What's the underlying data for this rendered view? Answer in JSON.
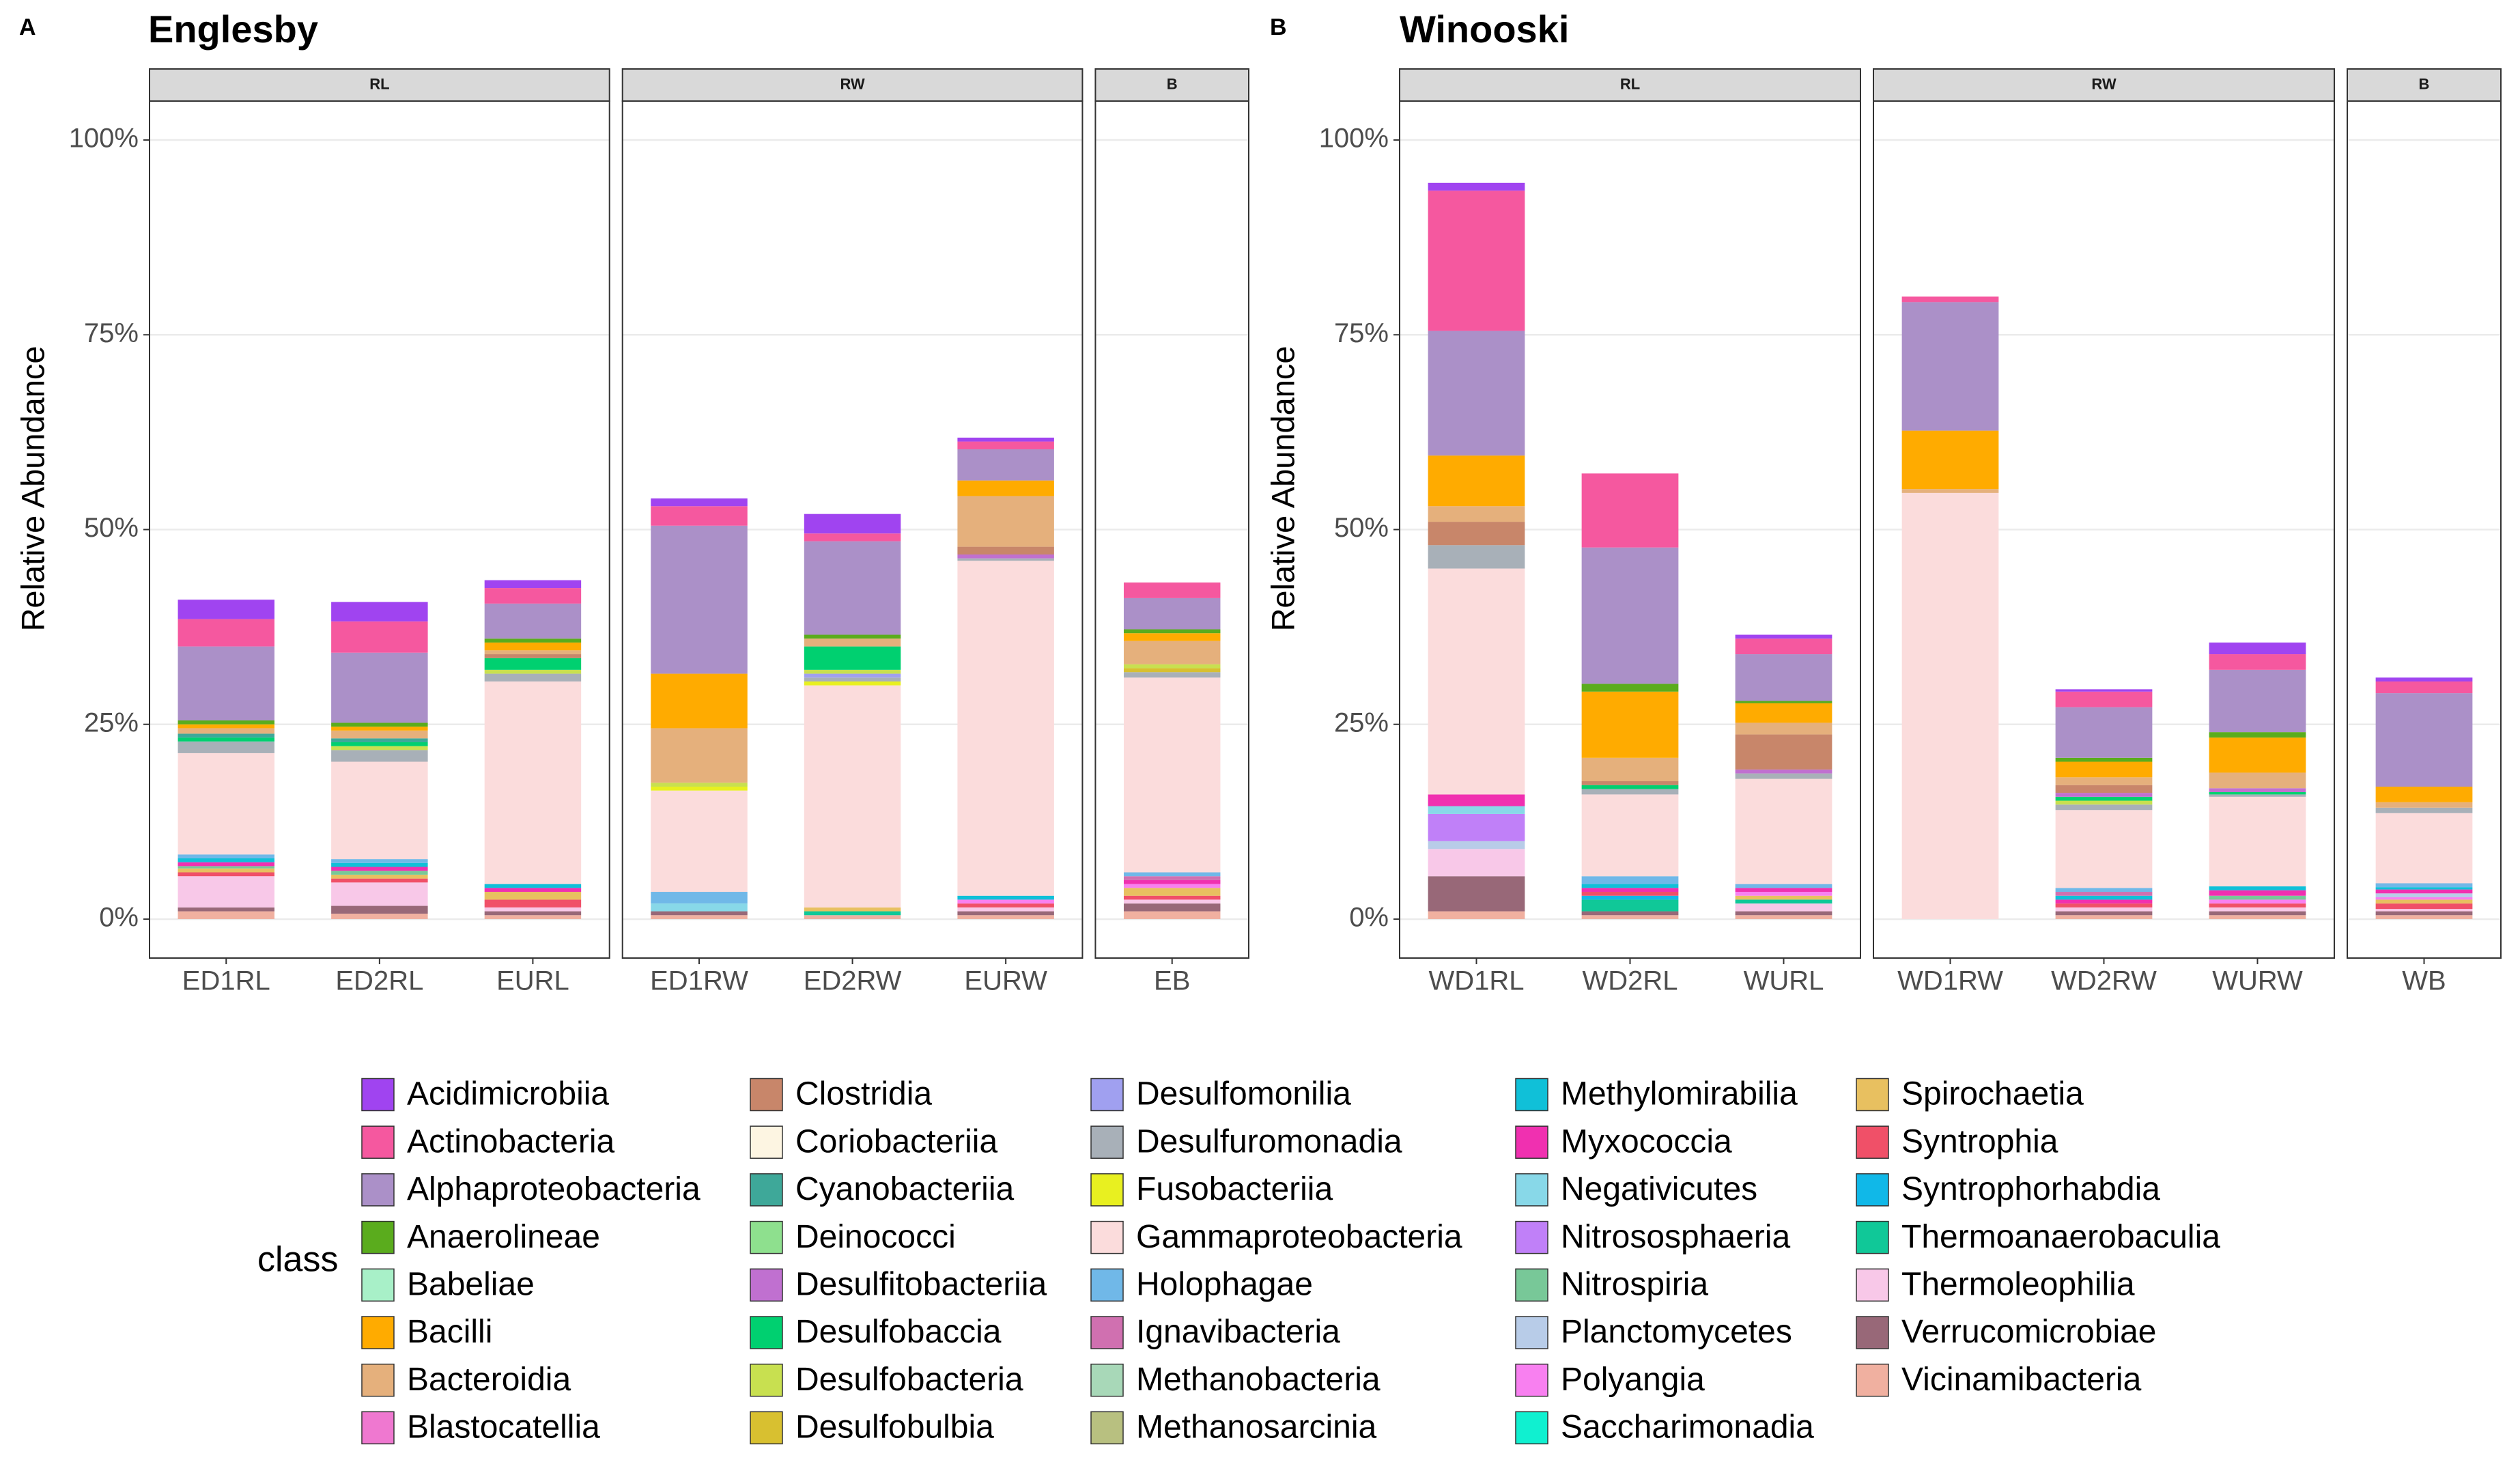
{
  "chart_data": {
    "type": "bar",
    "stacked": true,
    "ylabel": "Relative Abundance",
    "ylim": [
      -5,
      105
    ],
    "yticks": [
      {
        "value": 0,
        "label": "0%"
      },
      {
        "value": 25,
        "label": "25%"
      },
      {
        "value": 50,
        "label": "50%"
      },
      {
        "value": 75,
        "label": "75%"
      },
      {
        "value": 100,
        "label": "100%"
      }
    ],
    "grid": true,
    "legend_title": "class",
    "panels": [
      {
        "label": "A",
        "title": "Englesby",
        "facets": [
          {
            "name": "RL",
            "categories": [
              "ED1RL",
              "ED2RL",
              "EURL"
            ]
          },
          {
            "name": "RW",
            "categories": [
              "ED1RW",
              "ED2RW",
              "EURW"
            ]
          },
          {
            "name": "B",
            "categories": [
              "EB"
            ]
          }
        ]
      },
      {
        "label": "B",
        "title": "Winooski",
        "facets": [
          {
            "name": "RL",
            "categories": [
              "WD1RL",
              "WD2RL",
              "WURL"
            ]
          },
          {
            "name": "RW",
            "categories": [
              "WD1RW",
              "WD2RW",
              "WURW"
            ]
          },
          {
            "name": "B",
            "categories": [
              "WB"
            ]
          }
        ]
      }
    ],
    "series": [
      {
        "name": "Acidimicrobiia",
        "color": "#a044f0",
        "values": [
          2.5,
          2.5,
          1,
          1,
          2.5,
          0.5,
          0,
          1,
          0,
          0.5,
          0,
          0.3,
          1.5,
          0.5
        ]
      },
      {
        "name": "Actinobacteria",
        "color": "#f5589f",
        "values": [
          3.5,
          4,
          2,
          2.5,
          1,
          1,
          2,
          18,
          9.5,
          2,
          0.7,
          2,
          2,
          1.5
        ]
      },
      {
        "name": "Alphaproteobacteria",
        "color": "#ab90c8",
        "values": [
          9.5,
          9,
          4.5,
          19,
          12,
          4,
          4,
          16,
          17.5,
          6,
          16.5,
          6.5,
          8,
          12
        ]
      },
      {
        "name": "Anaerolineae",
        "color": "#5aac1d",
        "values": [
          0.5,
          0.5,
          0.5,
          0,
          0.5,
          0,
          0.5,
          0,
          1,
          0.3,
          0,
          0.5,
          0.7,
          0
        ]
      },
      {
        "name": "Babeliae",
        "color": "#a8f0c8",
        "values": [
          0,
          0,
          0,
          0,
          0,
          0,
          0,
          0,
          0,
          0,
          0,
          0,
          0,
          0
        ]
      },
      {
        "name": "Bacilli",
        "color": "#ffab00",
        "values": [
          0.5,
          0.5,
          1,
          7,
          0,
          2,
          1,
          6.5,
          8.5,
          2.5,
          7.5,
          2,
          4.5,
          2
        ]
      },
      {
        "name": "Bacteroidia",
        "color": "#e5b07c",
        "values": [
          0.7,
          1,
          0.5,
          7,
          1,
          6.5,
          3,
          2,
          3,
          1.5,
          0.5,
          1,
          2,
          0.7
        ]
      },
      {
        "name": "Blastocatellia",
        "color": "#ef78d0",
        "values": [
          0,
          0,
          0,
          0,
          0,
          0,
          0,
          0,
          0,
          0,
          0,
          0,
          0,
          0
        ]
      },
      {
        "name": "Clostridia",
        "color": "#c8866a",
        "values": [
          0,
          0,
          0.5,
          0,
          0,
          1,
          0,
          3,
          0.5,
          4.5,
          0,
          1,
          0,
          0
        ]
      },
      {
        "name": "Coriobacteriia",
        "color": "#fdf5e2",
        "values": [
          0,
          0,
          0,
          0,
          0,
          0,
          0,
          0,
          0,
          0,
          0,
          0,
          0,
          0
        ]
      },
      {
        "name": "Cyanobacteriia",
        "color": "#3ea899",
        "values": [
          0.5,
          0.5,
          0,
          0,
          0,
          0,
          0,
          0,
          0,
          0,
          0,
          0,
          0,
          0
        ]
      },
      {
        "name": "Deinococci",
        "color": "#8ee08e",
        "values": [
          0,
          0,
          0,
          0,
          0,
          0,
          0,
          0,
          0,
          0,
          0,
          0,
          0,
          0
        ]
      },
      {
        "name": "Desulfitobacteriia",
        "color": "#c070d0",
        "values": [
          0,
          0,
          0,
          0,
          0,
          0.5,
          0,
          0,
          0,
          0.5,
          0,
          0.5,
          0.5,
          0
        ]
      },
      {
        "name": "Desulfobaccia",
        "color": "#00d070",
        "values": [
          0.5,
          0.5,
          1.5,
          0,
          3,
          0,
          0,
          0,
          0.5,
          0,
          0,
          0.5,
          0.3,
          0
        ]
      },
      {
        "name": "Desulfobacteria",
        "color": "#c8e050",
        "values": [
          0,
          0.5,
          0.5,
          0.5,
          0.5,
          0,
          0.5,
          0,
          0,
          0,
          0,
          0.5,
          0,
          0
        ]
      },
      {
        "name": "Desulfobulbia",
        "color": "#d8c030",
        "values": [
          0,
          0,
          0,
          0,
          0,
          0,
          0.5,
          0,
          0,
          0,
          0,
          0,
          0,
          0
        ]
      },
      {
        "name": "Desulfomonilia",
        "color": "#a0a0f0",
        "values": [
          0,
          0,
          0,
          0,
          0.5,
          0,
          0,
          0,
          0,
          0,
          0,
          0,
          0,
          0
        ]
      },
      {
        "name": "Desulfuromonadia",
        "color": "#a8b0b8",
        "values": [
          1.5,
          1.5,
          1,
          0,
          0.5,
          0.3,
          0.7,
          3,
          0.7,
          0.7,
          0,
          0.7,
          0.3,
          0.7
        ]
      },
      {
        "name": "Fusobacteriia",
        "color": "#e8f020",
        "values": [
          0,
          0,
          0,
          0.5,
          0.5,
          0,
          0,
          0,
          0,
          0,
          0,
          0,
          0,
          0
        ]
      },
      {
        "name": "Gammaproteobacteria",
        "color": "#fbdcdc",
        "values": [
          13,
          12.5,
          26,
          13,
          28.5,
          43,
          25,
          29,
          10.5,
          13.5,
          54.7,
          10,
          11.5,
          9
        ]
      },
      {
        "name": "Holophagae",
        "color": "#70b8e8",
        "values": [
          0.5,
          0.5,
          0,
          1.5,
          0,
          0,
          0.5,
          0,
          1,
          0.5,
          0,
          0.5,
          0,
          0.5
        ]
      },
      {
        "name": "Ignavibacteria",
        "color": "#d070b0",
        "values": [
          0,
          0,
          0,
          0,
          0,
          0,
          0.5,
          0,
          0,
          0,
          0,
          0.5,
          0,
          0
        ]
      },
      {
        "name": "Methanobacteria",
        "color": "#a8d8b8",
        "values": [
          0,
          0,
          0,
          0,
          0,
          0,
          0,
          0,
          0,
          0,
          0,
          0,
          0,
          0
        ]
      },
      {
        "name": "Methanosarcinia",
        "color": "#b8c080",
        "values": [
          0,
          0,
          0,
          0,
          0,
          0,
          0,
          0,
          0,
          0,
          0,
          0,
          0,
          0
        ]
      },
      {
        "name": "Methylomirabilia",
        "color": "#10c0d8",
        "values": [
          0.5,
          0.5,
          0.5,
          0,
          0,
          0.5,
          0,
          0,
          0.5,
          0,
          0,
          0.5,
          0.5,
          0.3
        ]
      },
      {
        "name": "Myxococcia",
        "color": "#f030b0",
        "values": [
          0.5,
          0.5,
          0.5,
          0,
          0,
          0,
          0.5,
          1.5,
          0.5,
          0.5,
          0,
          0.5,
          0.7,
          0.5
        ]
      },
      {
        "name": "Negativicutes",
        "color": "#88d8e8",
        "values": [
          0,
          0,
          0,
          1,
          0,
          0,
          0,
          1,
          0,
          0,
          0,
          0,
          0,
          0
        ]
      },
      {
        "name": "Nitrososphaeria",
        "color": "#c080f8",
        "values": [
          0,
          0,
          0,
          0,
          0,
          0,
          0,
          3.5,
          0,
          0,
          0,
          0,
          0,
          0
        ]
      },
      {
        "name": "Nitrospiria",
        "color": "#78c898",
        "values": [
          0.3,
          0.5,
          0,
          0,
          0,
          0,
          0,
          0,
          0,
          0,
          0,
          0,
          0.5,
          0
        ]
      },
      {
        "name": "Planctomycetes",
        "color": "#b8cce8",
        "values": [
          0,
          0,
          0,
          0,
          0,
          0,
          0,
          1,
          0,
          0,
          0,
          0,
          0,
          0.5
        ]
      },
      {
        "name": "Polyangia",
        "color": "#f880f0",
        "values": [
          0,
          0,
          0,
          0,
          0,
          0.5,
          0.5,
          0,
          0,
          0.5,
          0,
          0,
          0.5,
          0.3
        ]
      },
      {
        "name": "Saccharimonadia",
        "color": "#10f0d0",
        "values": [
          0,
          0,
          0,
          0,
          0,
          0,
          0,
          0,
          0,
          0,
          0,
          0,
          0,
          0
        ]
      },
      {
        "name": "Spirochaetia",
        "color": "#e8c060",
        "values": [
          0.5,
          0.5,
          1,
          0,
          0.5,
          0,
          1,
          0,
          0,
          0.5,
          0,
          0,
          0,
          0.5
        ]
      },
      {
        "name": "Syntrophia",
        "color": "#f05068",
        "values": [
          0.5,
          0.5,
          1,
          0,
          0,
          0.5,
          0.5,
          0,
          0.5,
          0,
          0,
          0.5,
          0.5,
          0.7
        ]
      },
      {
        "name": "Syntrophorhabdia",
        "color": "#10b8e8",
        "values": [
          0,
          0,
          0,
          0,
          0,
          0,
          0,
          0,
          0.5,
          0,
          0,
          0,
          0,
          0
        ]
      },
      {
        "name": "Thermoanaerobaculia",
        "color": "#10c898",
        "values": [
          0,
          0,
          0,
          0,
          0.5,
          0,
          0,
          0,
          1.5,
          0.5,
          0,
          0,
          0,
          0
        ]
      },
      {
        "name": "Thermoleophilia",
        "color": "#f8c8e8",
        "values": [
          4,
          3,
          0.5,
          0,
          0,
          0.5,
          0.5,
          3.5,
          0,
          1,
          0,
          0.5,
          0.5,
          0.3
        ]
      },
      {
        "name": "Verrucomicrobiae",
        "color": "#986878",
        "values": [
          0.5,
          1,
          0.5,
          0.5,
          0,
          0.5,
          1,
          4.5,
          0.5,
          0.5,
          0,
          0.5,
          0.5,
          0.5
        ]
      },
      {
        "name": "Vicinamibacteria",
        "color": "#f0b0a0",
        "values": [
          1,
          0.7,
          0.5,
          0.5,
          0.5,
          0.5,
          1,
          1,
          0.5,
          0.5,
          0,
          0.5,
          0.5,
          0.5
        ]
      }
    ]
  }
}
